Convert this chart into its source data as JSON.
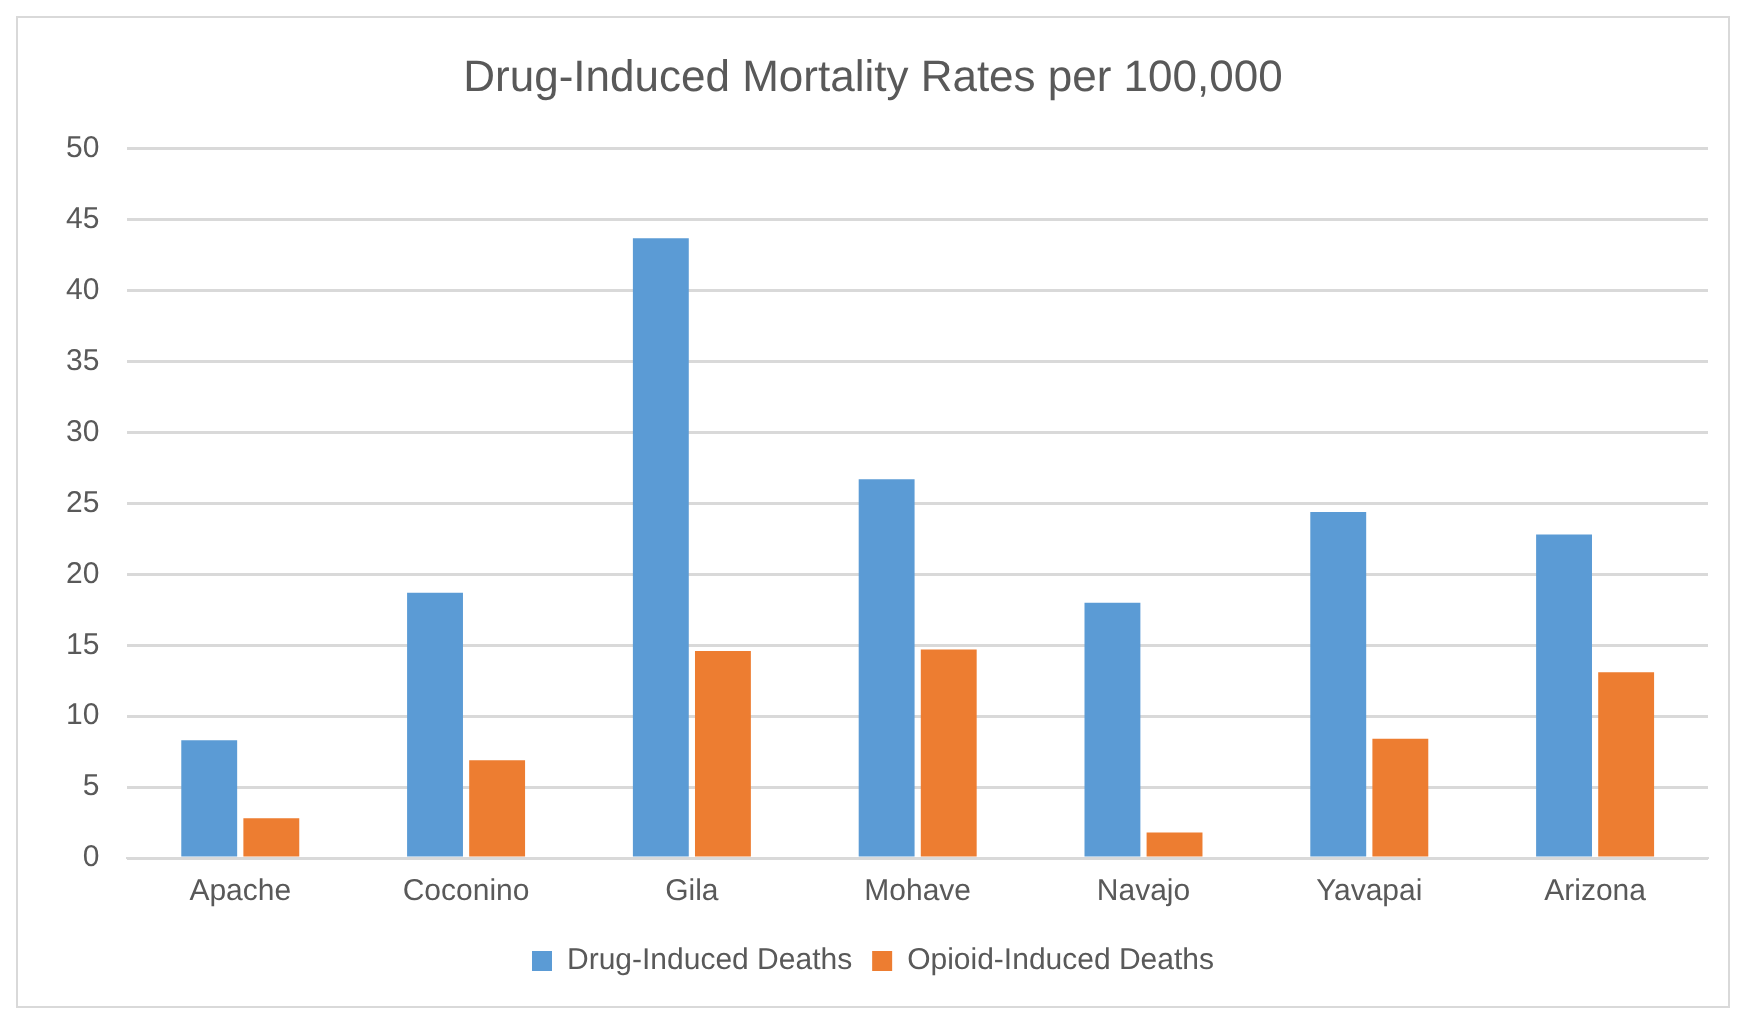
{
  "chart_data": {
    "type": "bar",
    "title": "Drug-Induced Mortality Rates per 100,000",
    "categories": [
      "Apache",
      "Coconino",
      "Gila",
      "Mohave",
      "Navajo",
      "Yavapai",
      "Arizona"
    ],
    "series": [
      {
        "name": "Drug-Induced Deaths",
        "color": "#5b9bd5",
        "values": [
          8.3,
          18.7,
          43.7,
          26.7,
          18.0,
          24.4,
          22.8
        ]
      },
      {
        "name": "Opioid-Induced Deaths",
        "color": "#ed7d31",
        "values": [
          2.8,
          6.9,
          14.6,
          14.7,
          1.8,
          8.4,
          13.1
        ]
      }
    ],
    "ylim": [
      0,
      50
    ],
    "yticks": [
      0,
      5,
      10,
      15,
      20,
      25,
      30,
      35,
      40,
      45,
      50
    ],
    "grid": "y",
    "legend": "bottom"
  }
}
